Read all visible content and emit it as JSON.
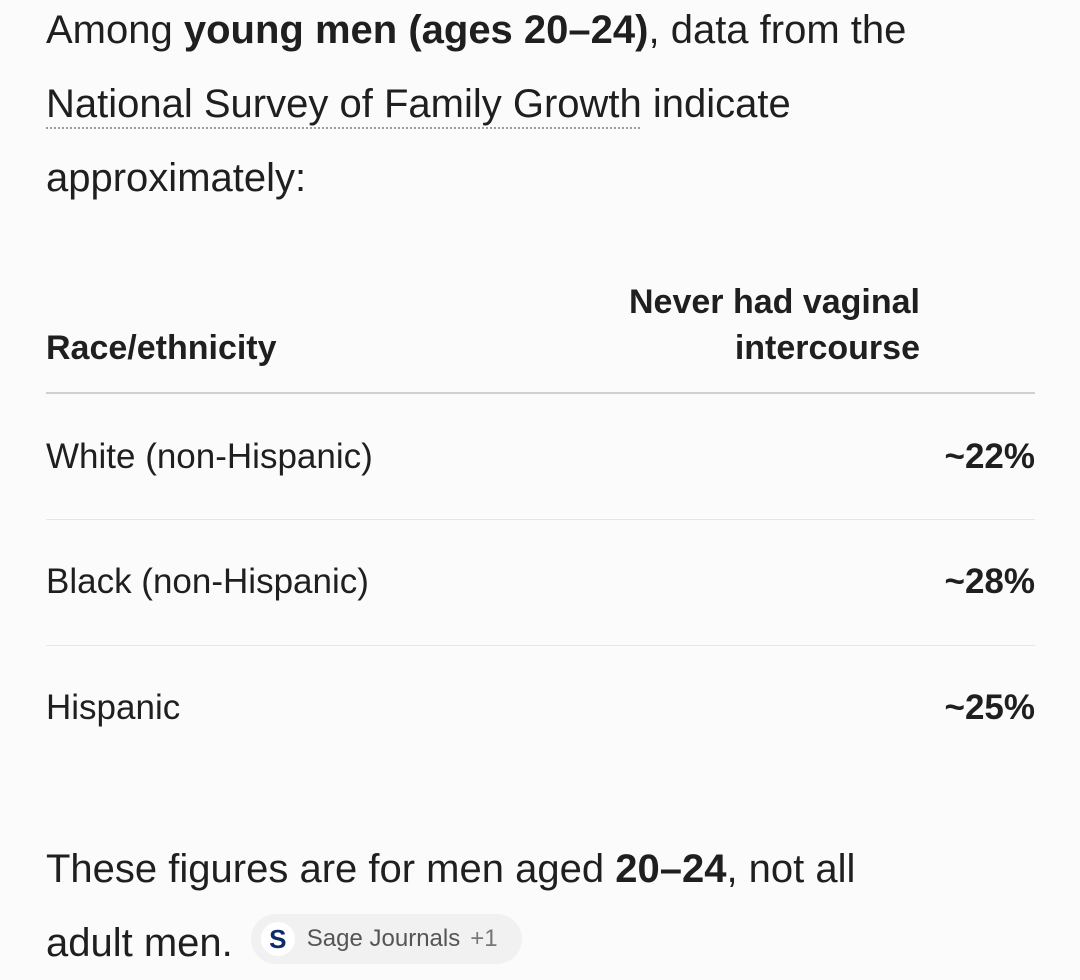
{
  "intro": {
    "text_1": "Among ",
    "bold": "young men (ages 20–24)",
    "text_2": ", data from the",
    "link": "National Survey of Family Growth",
    "text_3": " indicate",
    "text_4": "approximately:"
  },
  "table": {
    "headers": [
      "Race/ethnicity",
      "Never had vaginal intercourse"
    ],
    "rows": [
      [
        "White (non-Hispanic)",
        "~22%"
      ],
      [
        "Black (non-Hispanic)",
        "~28%"
      ],
      [
        "Hispanic",
        "~25%"
      ]
    ]
  },
  "footer": {
    "text_1": "These figures are for men aged ",
    "bold": "20–24",
    "text_2": ", not all",
    "text_3": "adult men."
  },
  "source_chip": {
    "icon": "S",
    "label": "Sage Journals",
    "extra": "+1"
  }
}
